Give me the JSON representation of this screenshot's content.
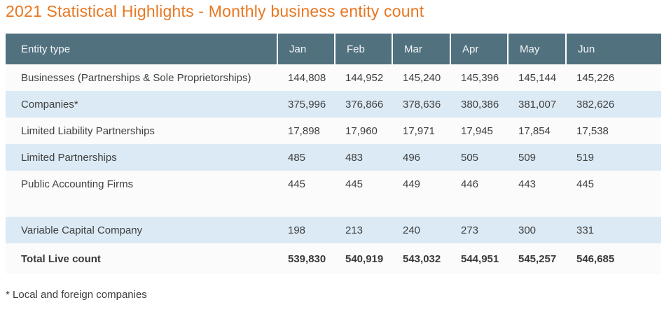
{
  "page": {
    "title": "2021 Statistical Highlights - Monthly business entity count",
    "footnote": "* Local and foreign companies"
  },
  "colors": {
    "title_accent": "#e87722",
    "header_bg": "#52717f",
    "header_text": "#f5f7f8",
    "row_bg": "#fbfbfb",
    "row_alt_bg": "#dbeaf5",
    "body_text": "#404040"
  },
  "table": {
    "entity_type_header": "Entity type",
    "months": [
      "Jan",
      "Feb",
      "Mar",
      "Apr",
      "May",
      "Jun"
    ],
    "rows": [
      {
        "label": "Businesses (Partnerships & Sole Proprietorships)",
        "values": [
          "144,808",
          "144,952",
          "145,240",
          "145,396",
          "145,144",
          "145,226"
        ]
      },
      {
        "label": "Companies*",
        "values": [
          "375,996",
          "376,866",
          "378,636",
          "380,386",
          "381,007",
          "382,626"
        ]
      },
      {
        "label": "Limited Liability Partnerships",
        "values": [
          "17,898",
          "17,960",
          "17,971",
          "17,945",
          "17,854",
          "17,538"
        ]
      },
      {
        "label": "Limited Partnerships",
        "values": [
          "485",
          "483",
          "496",
          "505",
          "509",
          "519"
        ]
      },
      {
        "label": "Public Accounting Firms",
        "values": [
          "445",
          "445",
          "449",
          "446",
          "443",
          "445"
        ]
      },
      {
        "spacer": true,
        "label": "",
        "values": [
          "",
          "",
          "",
          "",
          "",
          ""
        ]
      },
      {
        "label": "Variable Capital Company",
        "values": [
          "198",
          "213",
          "240",
          "273",
          "300",
          "331"
        ]
      },
      {
        "total": true,
        "label": "Total Live count",
        "values": [
          "539,830",
          "540,919",
          "543,032",
          "544,951",
          "545,257",
          "546,685"
        ]
      }
    ]
  }
}
